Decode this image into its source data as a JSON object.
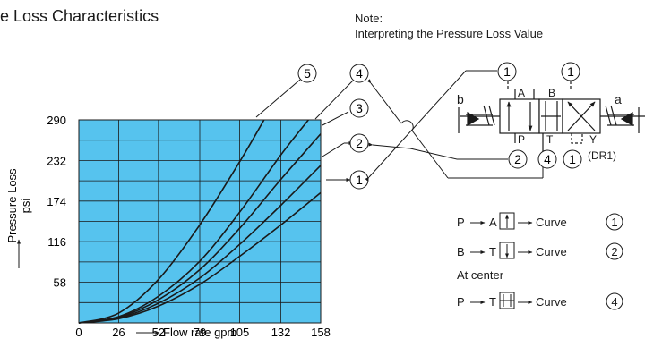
{
  "header": {
    "title": "e Loss Characteristics",
    "note_line1": "Note:",
    "note_line2": "Interpreting the Pressure Loss Value"
  },
  "chart_data": {
    "type": "line",
    "xlabel": "Flow rate  gpm",
    "ylabel_line1": "Pressure Loss",
    "ylabel_line2": "psi",
    "xlim": [
      0,
      158
    ],
    "ylim": [
      0,
      290
    ],
    "x_ticks": [
      0,
      26,
      52,
      79,
      105,
      132,
      158
    ],
    "y_ticks": [
      58,
      116,
      174,
      232,
      290
    ],
    "grid": true,
    "background_color": "#56c3ee",
    "series": [
      {
        "name": "1",
        "points": [
          [
            0,
            0
          ],
          [
            26,
            6
          ],
          [
            52,
            24
          ],
          [
            79,
            55
          ],
          [
            105,
            95
          ],
          [
            132,
            140
          ],
          [
            158,
            186
          ]
        ]
      },
      {
        "name": "2",
        "points": [
          [
            0,
            0
          ],
          [
            26,
            7
          ],
          [
            52,
            28
          ],
          [
            79,
            64
          ],
          [
            105,
            112
          ],
          [
            132,
            168
          ],
          [
            158,
            225
          ]
        ]
      },
      {
        "name": "3",
        "points": [
          [
            0,
            0
          ],
          [
            26,
            8
          ],
          [
            52,
            33
          ],
          [
            79,
            76
          ],
          [
            105,
            135
          ],
          [
            132,
            205
          ],
          [
            158,
            270
          ]
        ]
      },
      {
        "name": "4",
        "points": [
          [
            0,
            0
          ],
          [
            26,
            9
          ],
          [
            52,
            38
          ],
          [
            79,
            88
          ],
          [
            105,
            158
          ],
          [
            132,
            240
          ],
          [
            150,
            290
          ]
        ]
      },
      {
        "name": "5",
        "points": [
          [
            0,
            0
          ],
          [
            26,
            14
          ],
          [
            52,
            62
          ],
          [
            79,
            140
          ],
          [
            105,
            230
          ],
          [
            121,
            290
          ]
        ]
      }
    ]
  },
  "valve": {
    "port_a": "A",
    "port_b": "B",
    "port_p": "P",
    "port_t": "T",
    "port_y": "Y",
    "side_b": "b",
    "side_a": "a",
    "dr1": "(DR1)",
    "callouts": [
      "1",
      "1",
      "2",
      "4",
      "1"
    ]
  },
  "legend": {
    "rows": [
      {
        "from": "P",
        "to": "A",
        "curve_label": "Curve",
        "curve": "1"
      },
      {
        "from": "B",
        "to": "T",
        "curve_label": "Curve",
        "curve": "2"
      },
      {
        "from": "P",
        "to": "T",
        "curve_label": "Curve",
        "curve": "4"
      }
    ],
    "at_center": "At center"
  }
}
